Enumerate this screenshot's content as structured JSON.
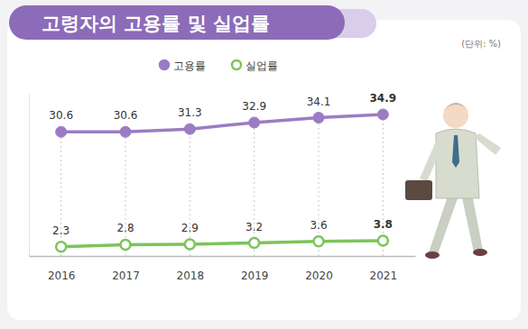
{
  "chart_data": {
    "type": "line",
    "title": "고령자의 고용률 및 실업률",
    "subtitle": "(단위: %)",
    "categories": [
      "2016",
      "2017",
      "2018",
      "2019",
      "2020",
      "2021"
    ],
    "series": [
      {
        "name": "고용률",
        "color": "#9b7cc4",
        "marker": "circle",
        "line_style": "solid",
        "values": [
          30.6,
          30.6,
          31.3,
          32.9,
          34.1,
          34.9
        ]
      },
      {
        "name": "실업률",
        "color": "#7cc55a",
        "marker": "open-circle",
        "line_style": "solid",
        "values": [
          2.3,
          2.8,
          2.9,
          3.2,
          3.6,
          3.8
        ]
      }
    ],
    "ylim": [
      0,
      40
    ],
    "tick_labels": "x",
    "grid": true,
    "data_labels": true,
    "legend": "top"
  }
}
